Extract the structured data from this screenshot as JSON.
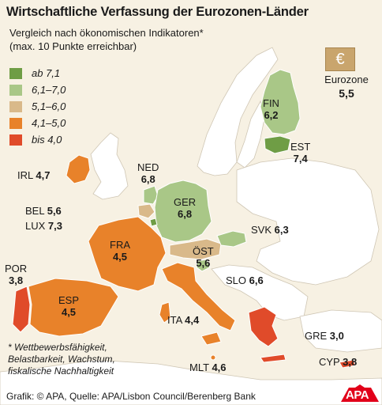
{
  "header": {
    "title": "Wirtschaftliche Verfassung der Eurozonen-Länder",
    "subtitle_line1": "Vergleich nach ökonomischen Indikatoren*",
    "subtitle_line2": "(max. 10 Punkte erreichbar)"
  },
  "legend": [
    {
      "label": "ab 7,1",
      "color": "#6f9d45"
    },
    {
      "label": "6,1–7,0",
      "color": "#a9c787"
    },
    {
      "label": "5,1–6,0",
      "color": "#d9b98a"
    },
    {
      "label": "4,1–5,0",
      "color": "#e8822a"
    },
    {
      "label": "bis 4,0",
      "color": "#e04b2a"
    }
  ],
  "eurozone": {
    "label": "Eurozone",
    "value": "5,5",
    "symbol": "€"
  },
  "countries": {
    "fin": {
      "code": "FIN",
      "value": "6,2"
    },
    "est": {
      "code": "EST",
      "value": "7,4"
    },
    "irl": {
      "code": "IRL",
      "value": "4,7"
    },
    "ned": {
      "code": "NED",
      "value": "6,8"
    },
    "ger": {
      "code": "GER",
      "value": "6,8"
    },
    "bel": {
      "code": "BEL",
      "value": "5,6"
    },
    "lux": {
      "code": "LUX",
      "value": "7,3"
    },
    "svk": {
      "code": "SVK",
      "value": "6,3"
    },
    "fra": {
      "code": "FRA",
      "value": "4,5"
    },
    "ost": {
      "code": "ÖST",
      "value": "5,6"
    },
    "por": {
      "code": "POR",
      "value": "3,8"
    },
    "slo": {
      "code": "SLO",
      "value": "6,6"
    },
    "esp": {
      "code": "ESP",
      "value": "4,5"
    },
    "ita": {
      "code": "ITA",
      "value": "4,4"
    },
    "gre": {
      "code": "GRE",
      "value": "3,0"
    },
    "mlt": {
      "code": "MLT",
      "value": "4,6"
    },
    "cyp": {
      "code": "CYP",
      "value": "3,8"
    }
  },
  "footnote": {
    "line1": "* Wettbewerbsfähigkeit,",
    "line2": "Belastbarkeit, Wachstum,",
    "line3": "fiskalische Nachhaltigkeit"
  },
  "source": "Grafik: © APA, Quelle: APA/Lisbon Council/Berenberg Bank",
  "logo": "APA",
  "colors": {
    "background": "#f7f1e3",
    "non_euro_land": "#ffffff",
    "sea": "#f7f1e3",
    "logo_red": "#e2001a"
  }
}
